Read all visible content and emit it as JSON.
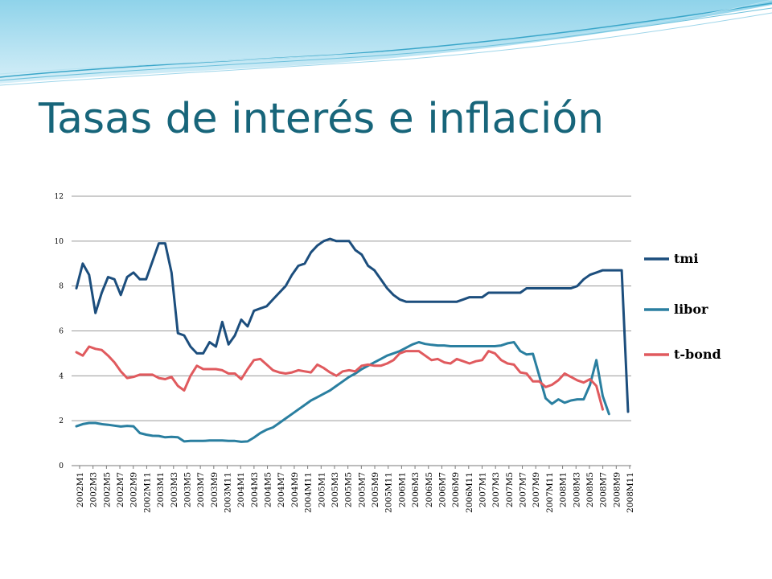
{
  "slide": {
    "title": "Tasas de interés e inflación"
  },
  "chart_data": {
    "type": "line",
    "title": "",
    "xlabel": "",
    "ylabel": "",
    "ylim": [
      0,
      12
    ],
    "yticks": [
      0,
      2,
      4,
      6,
      8,
      10,
      12
    ],
    "grid": "horizontal",
    "legend_position": "right",
    "x_tick_labels": [
      "2002M1",
      "2002M3",
      "2002M5",
      "2002M7",
      "2002M9",
      "2002M11",
      "2003M1",
      "2003M3",
      "2003M5",
      "2003M7",
      "2003M9",
      "2003M11",
      "2004M1",
      "2004M3",
      "2004M5",
      "2004M7",
      "2004M9",
      "2004M11",
      "2005M1",
      "2005M3",
      "2005M5",
      "2005M7",
      "2005M9",
      "2005M11",
      "2006M1",
      "2006M3",
      "2006M5",
      "2006M7",
      "2006M9",
      "2006M11",
      "2007M1",
      "2007M3",
      "2007M5",
      "2007M7",
      "2007M9",
      "2007M11",
      "2008M1",
      "2008M3",
      "2008M5",
      "2008M7",
      "2008M9",
      "2008M11"
    ],
    "x_start": "2002M1",
    "series": [
      {
        "name": "tmi",
        "color": "#1c4e7d",
        "values": [
          7.9,
          9.0,
          8.5,
          6.8,
          7.7,
          8.4,
          8.3,
          7.6,
          8.4,
          8.6,
          8.3,
          8.3,
          9.1,
          9.9,
          9.9,
          8.6,
          5.9,
          5.8,
          5.3,
          5.0,
          5.0,
          5.5,
          5.3,
          6.4,
          5.4,
          5.8,
          6.5,
          6.2,
          6.9,
          7.0,
          7.1,
          7.4,
          7.7,
          8.0,
          8.5,
          8.9,
          9.0,
          9.5,
          9.8,
          10.0,
          10.1,
          10.0,
          10.0,
          10.0,
          9.6,
          9.4,
          8.9,
          8.7,
          8.3,
          7.9,
          7.6,
          7.4,
          7.3,
          7.3,
          7.3,
          7.3,
          7.3,
          7.3,
          7.3,
          7.3,
          7.3,
          7.4,
          7.5,
          7.5,
          7.5,
          7.7,
          7.7,
          7.7,
          7.7,
          7.7,
          7.7,
          7.9,
          7.9,
          7.9,
          7.9,
          7.9,
          7.9,
          7.9,
          7.9,
          8.0,
          8.3,
          8.5,
          8.6,
          8.7,
          8.7,
          8.7,
          8.7,
          2.4
        ]
      },
      {
        "name": "libor",
        "color": "#2a7fa0",
        "values": [
          1.75,
          1.85,
          1.9,
          1.9,
          1.85,
          1.82,
          1.78,
          1.74,
          1.77,
          1.75,
          1.45,
          1.38,
          1.33,
          1.32,
          1.26,
          1.28,
          1.26,
          1.08,
          1.1,
          1.1,
          1.1,
          1.12,
          1.12,
          1.12,
          1.1,
          1.1,
          1.06,
          1.08,
          1.25,
          1.45,
          1.6,
          1.7,
          1.9,
          2.1,
          2.3,
          2.5,
          2.7,
          2.9,
          3.05,
          3.2,
          3.35,
          3.55,
          3.75,
          3.95,
          4.1,
          4.3,
          4.45,
          4.6,
          4.75,
          4.9,
          5.0,
          5.1,
          5.25,
          5.4,
          5.5,
          5.42,
          5.38,
          5.35,
          5.35,
          5.32,
          5.32,
          5.32,
          5.32,
          5.32,
          5.32,
          5.32,
          5.32,
          5.35,
          5.45,
          5.5,
          5.1,
          4.95,
          4.98,
          4.0,
          3.0,
          2.75,
          2.95,
          2.8,
          2.9,
          2.95,
          2.95,
          3.6,
          4.7,
          3.1,
          2.3
        ]
      },
      {
        "name": "t-bond",
        "color": "#e05a5e",
        "values": [
          5.05,
          4.9,
          5.3,
          5.2,
          5.15,
          4.9,
          4.6,
          4.2,
          3.9,
          3.95,
          4.05,
          4.05,
          4.05,
          3.9,
          3.85,
          3.95,
          3.55,
          3.35,
          4.0,
          4.45,
          4.3,
          4.3,
          4.3,
          4.25,
          4.1,
          4.1,
          3.85,
          4.3,
          4.7,
          4.75,
          4.5,
          4.25,
          4.15,
          4.1,
          4.15,
          4.25,
          4.2,
          4.15,
          4.5,
          4.35,
          4.15,
          4.0,
          4.2,
          4.25,
          4.2,
          4.45,
          4.5,
          4.45,
          4.45,
          4.55,
          4.7,
          5.0,
          5.1,
          5.1,
          5.1,
          4.9,
          4.7,
          4.75,
          4.6,
          4.55,
          4.75,
          4.65,
          4.55,
          4.65,
          4.7,
          5.1,
          5.0,
          4.7,
          4.55,
          4.5,
          4.15,
          4.1,
          3.75,
          3.75,
          3.5,
          3.6,
          3.8,
          4.1,
          3.95,
          3.8,
          3.7,
          3.85,
          3.55,
          2.5
        ]
      }
    ]
  }
}
